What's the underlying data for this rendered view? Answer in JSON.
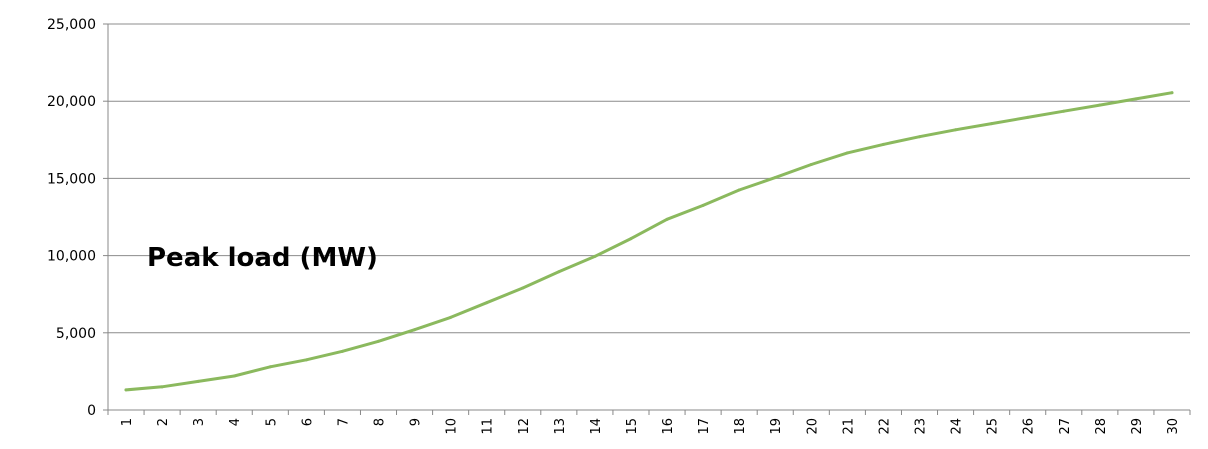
{
  "chart_data": {
    "type": "line",
    "title": "",
    "xlabel": "",
    "ylabel": "",
    "annotation": "Peak load (MW)",
    "x": [
      1,
      2,
      3,
      4,
      5,
      6,
      7,
      8,
      9,
      10,
      11,
      12,
      13,
      14,
      15,
      16,
      17,
      18,
      19,
      20,
      21,
      22,
      23,
      24,
      25,
      26,
      27,
      28,
      29,
      30
    ],
    "series": [
      {
        "name": "",
        "color": "#8bb95e",
        "values": [
          1300,
          1500,
          1850,
          2200,
          2800,
          3250,
          3800,
          4450,
          5200,
          6000,
          6950,
          7900,
          8950,
          9950,
          11100,
          12350,
          13250,
          14250,
          15050,
          15900,
          16650,
          17200,
          17700,
          18150,
          18550,
          18950,
          19350,
          19750,
          20150,
          20550
        ]
      }
    ],
    "ylim": [
      0,
      25000
    ],
    "yticks": [
      "0",
      "5,000",
      "10,000",
      "15,000",
      "20,000",
      "25,000"
    ],
    "xticks": [
      "1",
      "2",
      "3",
      "4",
      "5",
      "6",
      "7",
      "8",
      "9",
      "10",
      "11",
      "12",
      "13",
      "14",
      "15",
      "16",
      "17",
      "18",
      "19",
      "20",
      "21",
      "22",
      "23",
      "24",
      "25",
      "26",
      "27",
      "28",
      "29",
      "30"
    ],
    "grid": "horizontal",
    "legend": "none"
  }
}
